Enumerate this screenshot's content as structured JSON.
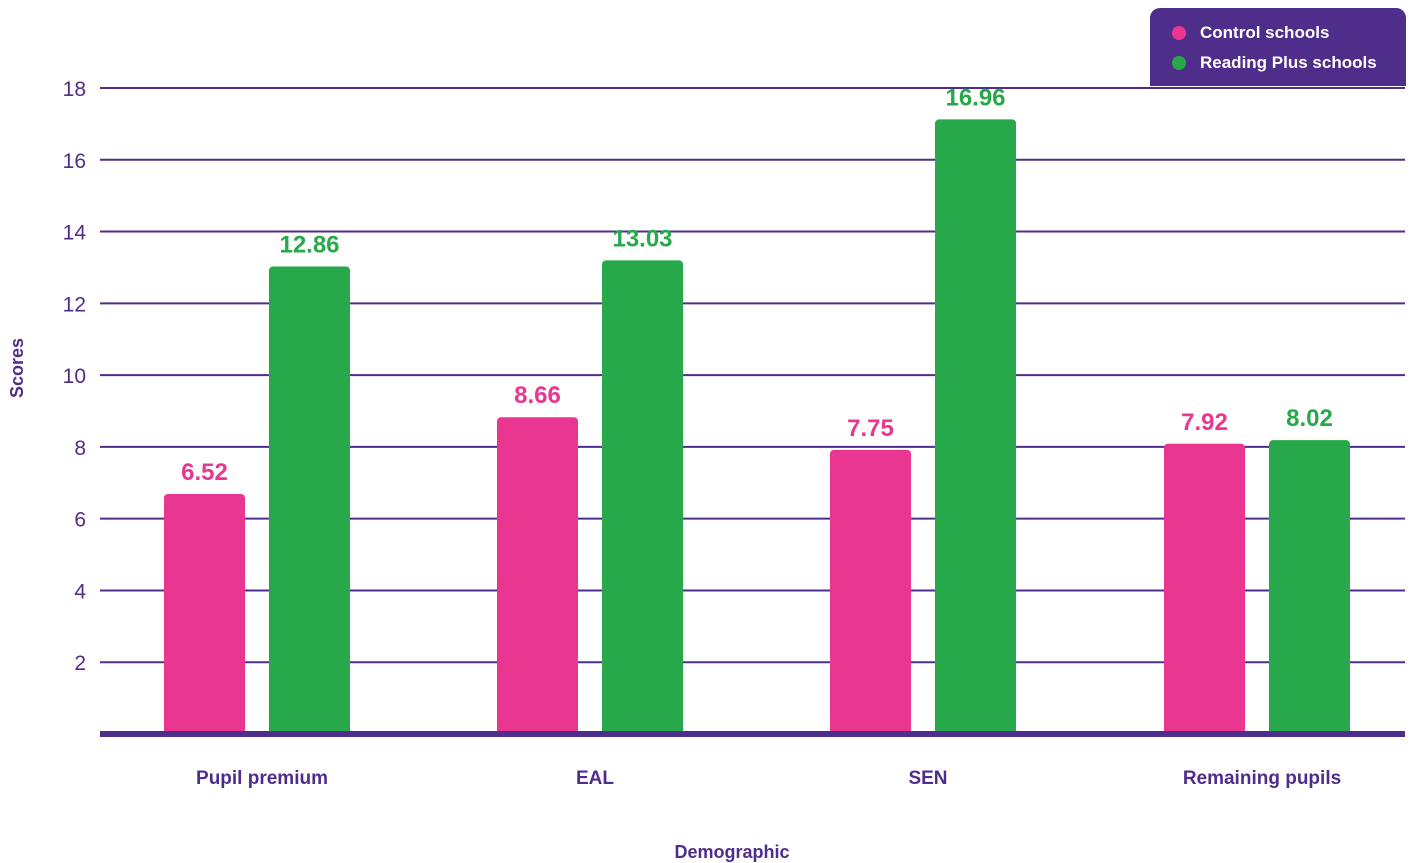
{
  "chart_data": {
    "type": "bar",
    "categories": [
      "Pupil premium",
      "EAL",
      "SEN",
      "Remaining pupils"
    ],
    "series": [
      {
        "name": "Control schools",
        "values": [
          6.52,
          8.66,
          7.75,
          7.92
        ]
      },
      {
        "name": "Reading Plus schools",
        "values": [
          12.86,
          13.03,
          16.96,
          8.02
        ]
      }
    ],
    "xlabel": "Demographic",
    "ylabel": "Scores",
    "ylim": [
      0,
      18
    ],
    "yticks": [
      2,
      4,
      6,
      8,
      10,
      12,
      14,
      16,
      18
    ],
    "grid": true,
    "legend_position": "top-right",
    "colors": {
      "control": "#e93791",
      "reading_plus": "#27a84a",
      "axis": "#4f2d8b",
      "text": "#4f2d8b"
    }
  }
}
